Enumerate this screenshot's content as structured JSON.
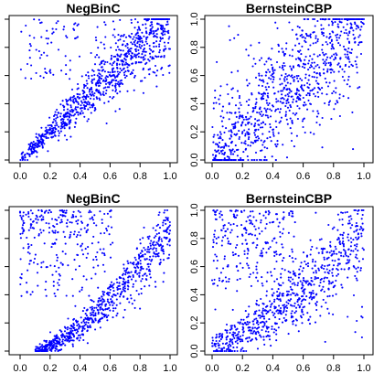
{
  "chart_data": [
    {
      "type": "scatter",
      "title": "NegBinC",
      "xlabel": "",
      "ylabel": "",
      "xlim": [
        0,
        1
      ],
      "ylim": [
        0,
        1
      ],
      "xticks": [
        "0.0",
        "0.2",
        "0.4",
        "0.6",
        "0.8",
        "1.0"
      ],
      "yticks": [
        "0.0",
        "0.2",
        "0.4",
        "0.6",
        "0.8",
        "1.0"
      ],
      "tick_label_style": "y-axis-hidden",
      "grid": false,
      "marker_color": "#0000ff",
      "approx_points": 1000,
      "distribution": "strong positive dependence concentrated along the diagonal y≈x, tight near the origin and spreading toward (1,1); sparse scatter in the upper-left region"
    },
    {
      "type": "scatter",
      "title": "BernsteinCBP",
      "xlabel": "",
      "ylabel": "",
      "xlim": [
        0,
        1
      ],
      "ylim": [
        0,
        1
      ],
      "xticks": [
        "0.0",
        "0.2",
        "0.4",
        "0.6",
        "0.8",
        "1.0"
      ],
      "yticks": [
        "0.0",
        "0.2",
        "0.4",
        "0.6",
        "0.8",
        "1.0"
      ],
      "tick_label_style": "y-axis-rotated-visible",
      "grid": false,
      "marker_color": "#0000ff",
      "approx_points": 1000,
      "distribution": "moderate positive dependence, broad band along the diagonal with wide spread"
    },
    {
      "type": "scatter",
      "title": "NegBinC",
      "xlabel": "",
      "ylabel": "",
      "xlim": [
        0,
        1
      ],
      "ylim": [
        0,
        1
      ],
      "xticks": [
        "0.0",
        "0.2",
        "0.4",
        "0.6",
        "0.8",
        "1.0"
      ],
      "yticks": [
        "0.0",
        "0.2",
        "0.4",
        "0.6",
        "0.8",
        "1.0"
      ],
      "tick_label_style": "y-axis-hidden",
      "grid": false,
      "marker_color": "#0000ff",
      "approx_points": 1000,
      "distribution": "convex curved band from (0.1,0) rising to (1,0.9), plus a dense cluster in the upper-left corner"
    },
    {
      "type": "scatter",
      "title": "BernsteinCBP",
      "xlabel": "",
      "ylabel": "",
      "xlim": [
        0,
        1
      ],
      "ylim": [
        0,
        1
      ],
      "xticks": [
        "0.0",
        "0.2",
        "0.4",
        "0.6",
        "0.8",
        "1.0"
      ],
      "yticks": [
        "0.0",
        "0.2",
        "0.4",
        "0.6",
        "0.8",
        "1.0"
      ],
      "tick_label_style": "y-axis-rotated-visible",
      "grid": false,
      "marker_color": "#0000ff",
      "approx_points": 1000,
      "distribution": "diffuse version of the curved band with an upper-left cluster"
    }
  ]
}
